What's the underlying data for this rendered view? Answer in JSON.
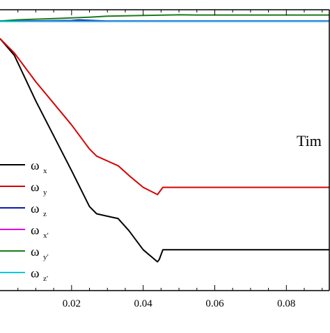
{
  "chart_data": {
    "type": "line",
    "xlabel": "Tim",
    "ylabel": "",
    "xlim": [
      0,
      0.092
    ],
    "ylim": [
      -105,
      12
    ],
    "x_ticks": [
      0.02,
      0.04,
      0.06,
      0.08
    ],
    "x_tick_labels": [
      "0.02",
      "0.04",
      "0.06",
      "0.08"
    ],
    "grid": false,
    "legend_position": "bottom-left",
    "series": [
      {
        "name": "ω",
        "sub": "x",
        "color": "#000000",
        "x": [
          0,
          0.004,
          0.01,
          0.02,
          0.025,
          0.027,
          0.03,
          0.033,
          0.036,
          0.04,
          0.044,
          0.0445,
          0.0455,
          0.05,
          0.07,
          0.092
        ],
        "y": [
          0,
          -7,
          -26,
          -55,
          -70,
          -73,
          -74,
          -75,
          -80,
          -88,
          -93,
          -92,
          -88,
          -88,
          -88,
          -88
        ]
      },
      {
        "name": "ω",
        "sub": "y",
        "color": "#d40000",
        "x": [
          0,
          0.004,
          0.01,
          0.02,
          0.025,
          0.027,
          0.03,
          0.033,
          0.036,
          0.04,
          0.044,
          0.0445,
          0.0455,
          0.05,
          0.07,
          0.092
        ],
        "y": [
          0,
          -6,
          -18,
          -36,
          -46,
          -49,
          -51,
          -53,
          -57,
          -62,
          -65,
          -64,
          -62,
          -62,
          -62,
          -62
        ]
      },
      {
        "name": "ω",
        "sub": "z",
        "color": "#0a1aa8",
        "x": [
          0,
          0.01,
          0.02,
          0.022,
          0.026,
          0.03,
          0.05,
          0.092
        ],
        "y": [
          7.3,
          7.35,
          7.5,
          7.7,
          7.5,
          7.3,
          7.3,
          7.3
        ]
      },
      {
        "name": "ω",
        "sub": "x′",
        "color": "#e000e0",
        "x": [
          0,
          0.05,
          0.092
        ],
        "y": [
          7.3,
          7.3,
          7.3
        ]
      },
      {
        "name": "ω",
        "sub": "y′",
        "color": "#1a7a1a",
        "x": [
          0,
          0.005,
          0.015,
          0.025,
          0.03,
          0.04,
          0.05,
          0.055,
          0.06,
          0.07,
          0.08,
          0.092
        ],
        "y": [
          7.3,
          7.8,
          8.3,
          8.9,
          9.3,
          9.6,
          9.9,
          9.8,
          9.8,
          9.8,
          9.8,
          9.8
        ]
      },
      {
        "name": "ω",
        "sub": "z′",
        "color": "#00c8e0",
        "x": [
          0,
          0.05,
          0.092
        ],
        "y": [
          7.1,
          7.1,
          7.1
        ]
      }
    ]
  }
}
